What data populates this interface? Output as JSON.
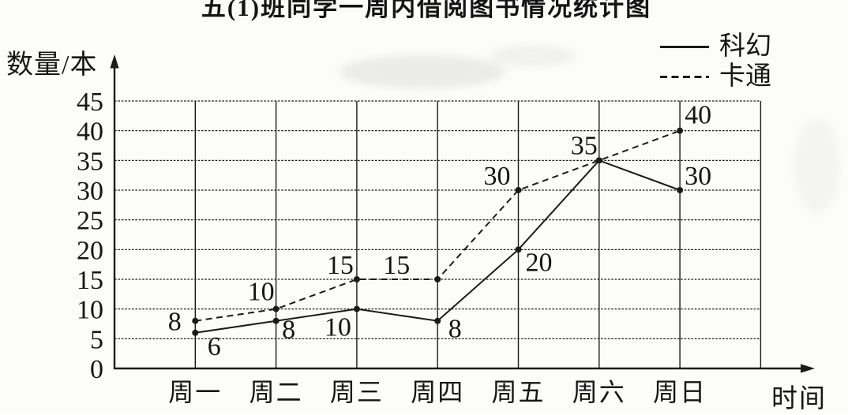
{
  "title": "五(1)班同学一周内借阅图书情况统计图",
  "axes": {
    "y_label": "数量/本",
    "x_label": "时间"
  },
  "legend": {
    "items": [
      {
        "name": "科幻",
        "line": "solid"
      },
      {
        "name": "卡通",
        "line": "dashed"
      }
    ]
  },
  "chart_data": {
    "type": "line",
    "title": "五(1)班同学一周内借阅图书情况统计图",
    "xlabel": "时间",
    "ylabel": "数量/本",
    "categories": [
      "周一",
      "周二",
      "周三",
      "周四",
      "周五",
      "周六",
      "周日"
    ],
    "series": [
      {
        "name": "科幻",
        "line_style": "solid",
        "values": [
          6,
          8,
          10,
          8,
          20,
          35,
          30
        ],
        "label_offsets": [
          [
            24,
            16
          ],
          [
            16,
            10
          ],
          [
            -24,
            22
          ],
          [
            22,
            9
          ],
          [
            26,
            15
          ],
          null,
          [
            23,
            -19
          ]
        ]
      },
      {
        "name": "卡通",
        "line_style": "dashed",
        "values": [
          8,
          10,
          15,
          15,
          30,
          35,
          40
        ],
        "label_offsets": [
          [
            -26,
            0
          ],
          [
            -19,
            -23
          ],
          [
            -21,
            -19
          ],
          [
            -52,
            -19
          ],
          [
            -27,
            -19
          ],
          [
            -19,
            -20
          ],
          [
            23,
            -21
          ]
        ]
      }
    ],
    "ylim": [
      0,
      45
    ],
    "ytick_step": 5,
    "yticks": [
      0,
      5,
      10,
      15,
      20,
      25,
      30,
      35,
      40,
      45
    ],
    "grid": true,
    "legend_position": "top-right",
    "point_marker": "dot",
    "ink_color": "#1b1b1b"
  }
}
